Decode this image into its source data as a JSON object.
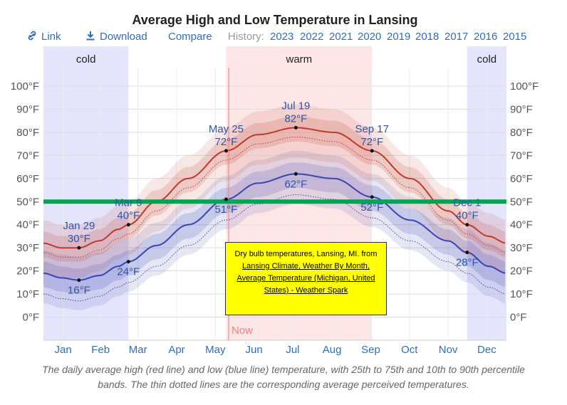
{
  "title": "Average High and Low Temperature in Lansing",
  "toolbar": {
    "link_label": "Link",
    "download_label": "Download",
    "compare_label": "Compare",
    "history_label": "History:",
    "years": [
      "2023",
      "2022",
      "2021",
      "2020",
      "2019",
      "2018",
      "2017",
      "2016",
      "2015"
    ]
  },
  "caption": "The daily average high (red line) and low (blue line) temperature, with 25th to 75th and 10th to 90th percentile bands. The thin dotted lines are the corresponding average perceived temperatures.",
  "note": {
    "text": "Dry bulb temperatures, Lansing, MI. from",
    "link_text": "Lansing Climate, Weather By Month, Average Temperature (Michigan, United States) - Weather Spark"
  },
  "colors": {
    "high_line": "#c0392b",
    "low_line": "#3b44b0",
    "cold_band": "#e4e4fb",
    "warm_band": "#fde6e6",
    "green_line": "#00a550",
    "link": "#2f6dbd",
    "note_bg": "#ffff00"
  },
  "chart_data": {
    "type": "line",
    "title": "Average High and Low Temperature in Lansing",
    "x_months": [
      "Jan",
      "Feb",
      "Mar",
      "Apr",
      "May",
      "Jun",
      "Jul",
      "Aug",
      "Sep",
      "Oct",
      "Nov",
      "Dec"
    ],
    "y_ticks": [
      "0°F",
      "10°F",
      "20°F",
      "30°F",
      "40°F",
      "50°F",
      "60°F",
      "70°F",
      "80°F",
      "90°F",
      "100°F"
    ],
    "ylim": [
      -10,
      108
    ],
    "x_day_range": [
      1,
      366
    ],
    "series": [
      {
        "name": "high",
        "points": [
          [
            1,
            32
          ],
          [
            15,
            30
          ],
          [
            29,
            30
          ],
          [
            45,
            33
          ],
          [
            60,
            38
          ],
          [
            68,
            40
          ],
          [
            90,
            50
          ],
          [
            115,
            60
          ],
          [
            145,
            72
          ],
          [
            170,
            79
          ],
          [
            200,
            82
          ],
          [
            230,
            80
          ],
          [
            260,
            72
          ],
          [
            290,
            60
          ],
          [
            320,
            46
          ],
          [
            335,
            40
          ],
          [
            352,
            35
          ],
          [
            366,
            32
          ]
        ]
      },
      {
        "name": "low",
        "points": [
          [
            1,
            19
          ],
          [
            15,
            17
          ],
          [
            29,
            16
          ],
          [
            45,
            18
          ],
          [
            60,
            22
          ],
          [
            68,
            24
          ],
          [
            90,
            31
          ],
          [
            115,
            40
          ],
          [
            145,
            51
          ],
          [
            170,
            58
          ],
          [
            200,
            62
          ],
          [
            230,
            60
          ],
          [
            260,
            52
          ],
          [
            290,
            42
          ],
          [
            320,
            33
          ],
          [
            335,
            28
          ],
          [
            352,
            22
          ],
          [
            366,
            19
          ]
        ]
      }
    ],
    "regions": [
      {
        "label": "cold",
        "from_day": 1,
        "to_day": 68
      },
      {
        "label": "warm",
        "from_day": 145,
        "to_day": 260
      },
      {
        "label": "cold",
        "from_day": 335,
        "to_day": 366
      }
    ],
    "now_day": 147,
    "now_label": "Now",
    "horizontal_marker": 50,
    "annotations": [
      {
        "series": "high",
        "day": 29,
        "date": "Jan 29",
        "value": "30°F"
      },
      {
        "series": "low",
        "day": 29,
        "date": "",
        "value": "16°F"
      },
      {
        "series": "high",
        "day": 68,
        "date": "Mar 9",
        "value": "40°F"
      },
      {
        "series": "low",
        "day": 68,
        "date": "",
        "value": "24°F"
      },
      {
        "series": "high",
        "day": 145,
        "date": "May 25",
        "value": "72°F"
      },
      {
        "series": "low",
        "day": 145,
        "date": "",
        "value": "51°F"
      },
      {
        "series": "high",
        "day": 200,
        "date": "Jul 19",
        "value": "82°F"
      },
      {
        "series": "low",
        "day": 200,
        "date": "",
        "value": "62°F"
      },
      {
        "series": "high",
        "day": 260,
        "date": "Sep 17",
        "value": "72°F"
      },
      {
        "series": "low",
        "day": 260,
        "date": "",
        "value": "52°F"
      },
      {
        "series": "high",
        "day": 335,
        "date": "Dec 1",
        "value": "40°F"
      },
      {
        "series": "low",
        "day": 335,
        "date": "",
        "value": "28°F"
      }
    ]
  }
}
